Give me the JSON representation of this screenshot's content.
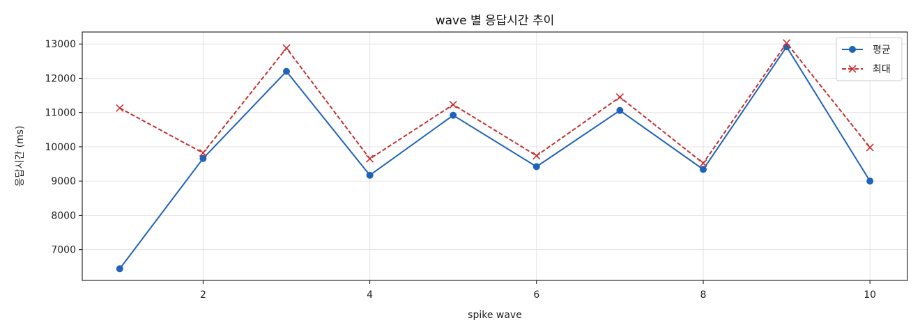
{
  "chart_data": {
    "type": "line",
    "title": "wave 별 응답시간 추이",
    "xlabel": "spike wave",
    "ylabel": "응답시간 (ms)",
    "x": [
      1,
      2,
      3,
      4,
      5,
      6,
      7,
      8,
      9,
      10
    ],
    "xticks": [
      2,
      4,
      6,
      8,
      10
    ],
    "yticks": [
      7000,
      8000,
      9000,
      10000,
      11000,
      12000,
      13000
    ],
    "xlim": [
      0.55,
      10.45
    ],
    "ylim": [
      6100,
      13350
    ],
    "grid": true,
    "legend_position": "top-right",
    "series": [
      {
        "name": "평균",
        "color": "#1f63b8",
        "line_style": "solid",
        "marker": "circle",
        "values": [
          6440,
          9660,
          12200,
          9170,
          10920,
          9420,
          11060,
          9340,
          12920,
          9000
        ]
      },
      {
        "name": "최대",
        "color": "#c62f2f",
        "line_style": "dashed",
        "marker": "x",
        "values": [
          11130,
          9820,
          12880,
          9650,
          11230,
          9740,
          11450,
          9520,
          13030,
          9980
        ]
      }
    ]
  }
}
